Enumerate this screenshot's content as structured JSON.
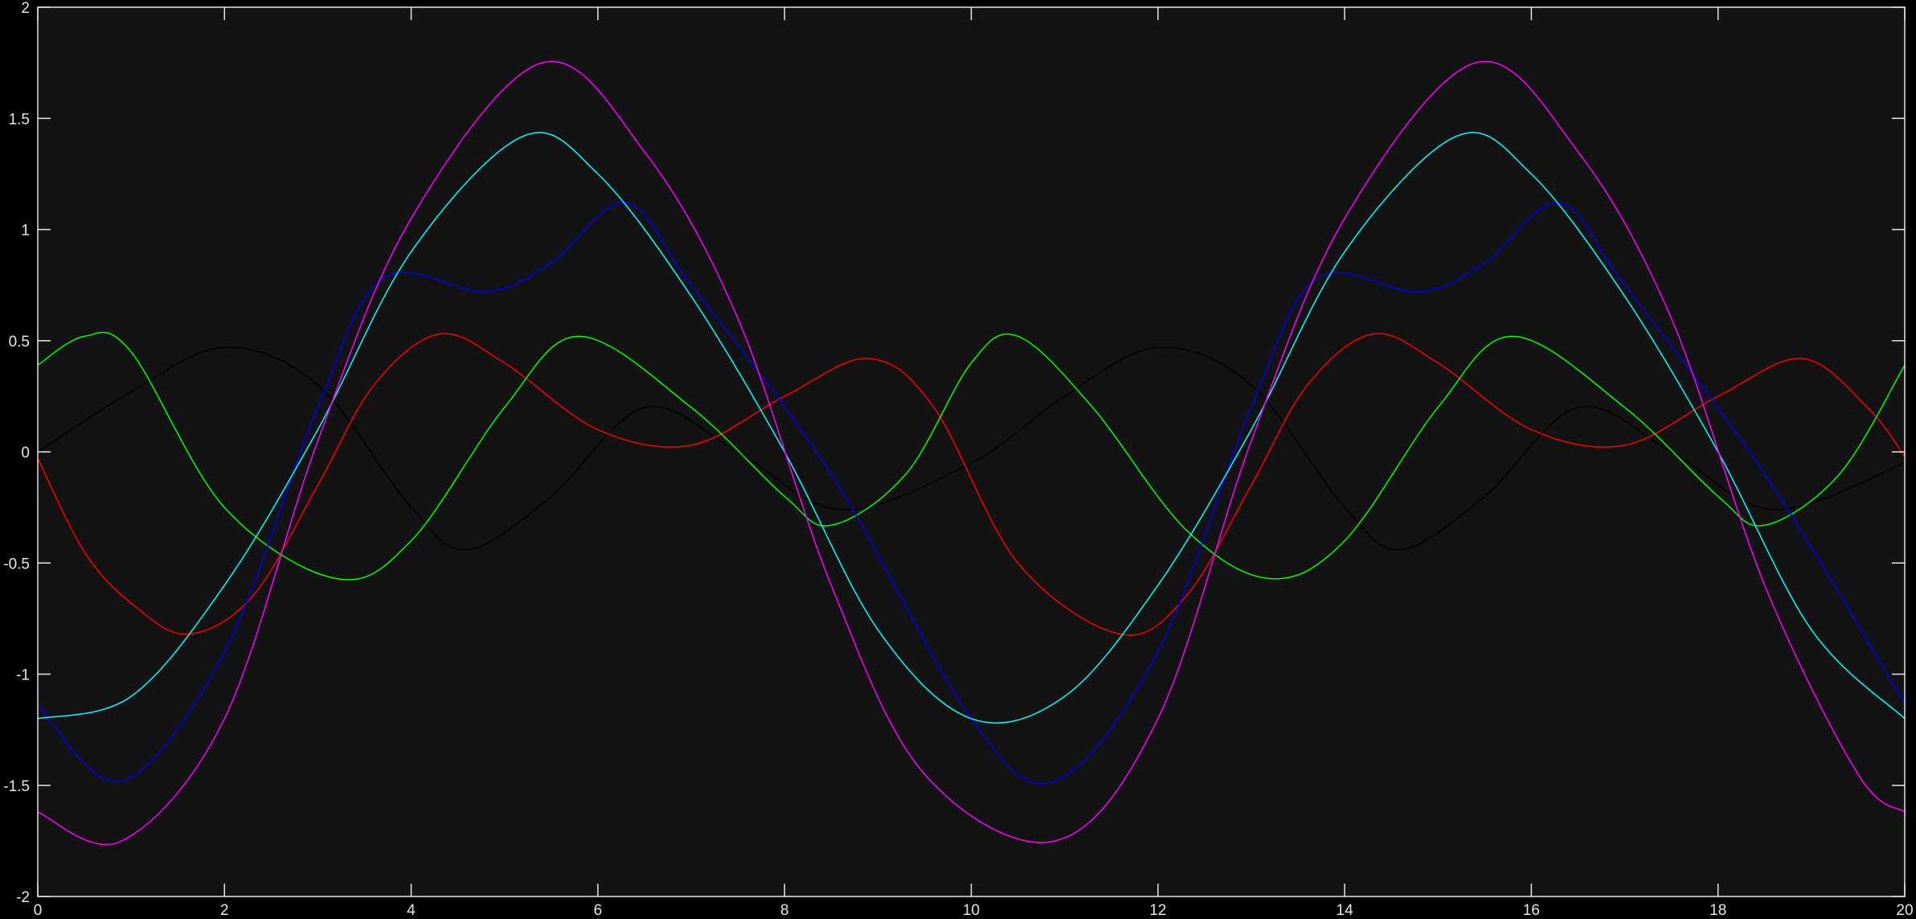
{
  "chart_data": {
    "type": "line",
    "title": "",
    "xlabel": "",
    "ylabel": "",
    "xlim": [
      0,
      20
    ],
    "ylim": [
      -2,
      2
    ],
    "x_ticks": [
      "0",
      "2",
      "4",
      "6",
      "8",
      "10",
      "12",
      "14",
      "16",
      "18",
      "20"
    ],
    "y_ticks": [
      "-2",
      "-1.5",
      "-1",
      "-0.5",
      "0",
      "0.5",
      "1",
      "1.5",
      "2"
    ],
    "grid": false,
    "colors": {
      "figure_background": "#000000",
      "axes_background": "#131313",
      "axes_edge": "#e6e6e6",
      "tick_label": "#e6e6e6"
    },
    "series": [
      {
        "color": "#000000",
        "x": [
          0,
          1,
          2,
          3,
          4,
          4.6,
          5.5,
          6.5,
          7.5,
          8.6,
          10,
          11,
          12,
          13,
          14,
          14.6,
          15.5,
          16.5,
          17.5,
          18.6,
          20
        ],
        "y": [
          0,
          0.27,
          0.47,
          0.3,
          -0.25,
          -0.44,
          -0.2,
          0.2,
          0.0,
          -0.26,
          -0.05,
          0.25,
          0.47,
          0.3,
          -0.25,
          -0.44,
          -0.2,
          0.2,
          0.0,
          -0.26,
          -0.05
        ]
      },
      {
        "color": "#ff0000",
        "x": [
          0,
          0.5,
          1,
          1.6,
          2.3,
          3,
          3.6,
          4.3,
          5,
          6,
          7,
          8,
          8.9,
          9.6,
          10.5,
          11.6,
          12.3,
          13,
          13.6,
          14.3,
          15,
          16,
          17,
          18,
          18.9,
          19.6,
          20
        ],
        "y": [
          -0.03,
          -0.45,
          -0.68,
          -0.82,
          -0.65,
          -0.15,
          0.3,
          0.53,
          0.4,
          0.1,
          0.03,
          0.25,
          0.42,
          0.2,
          -0.5,
          -0.82,
          -0.65,
          -0.15,
          0.3,
          0.53,
          0.4,
          0.1,
          0.03,
          0.25,
          0.42,
          0.2,
          -0.02
        ]
      },
      {
        "color": "#00ff00",
        "x": [
          0,
          0.5,
          1,
          2,
          3.2,
          4,
          5,
          5.8,
          7,
          8,
          8.5,
          9.3,
          10,
          10.5,
          11.3,
          12.3,
          13.2,
          14,
          15,
          15.8,
          17,
          18,
          18.5,
          19.3,
          20
        ],
        "y": [
          0.39,
          0.52,
          0.45,
          -0.25,
          -0.57,
          -0.4,
          0.2,
          0.52,
          0.2,
          -0.2,
          -0.33,
          -0.1,
          0.4,
          0.52,
          0.2,
          -0.35,
          -0.57,
          -0.4,
          0.2,
          0.52,
          0.2,
          -0.2,
          -0.33,
          -0.1,
          0.39
        ]
      },
      {
        "color": "#0000ff",
        "x": [
          0,
          0.9,
          2,
          3,
          3.7,
          4.8,
          5.5,
          6.3,
          7,
          8.5,
          10,
          10.9,
          12,
          13,
          13.7,
          14.8,
          15.5,
          16.3,
          17,
          18.5,
          20
        ],
        "y": [
          -1.14,
          -1.48,
          -0.9,
          0.2,
          0.78,
          0.72,
          0.85,
          1.12,
          0.75,
          -0.1,
          -1.2,
          -1.48,
          -0.9,
          0.2,
          0.78,
          0.72,
          0.85,
          1.12,
          0.75,
          -0.1,
          -1.13
        ]
      },
      {
        "color": "#00ffff",
        "x": [
          0,
          1,
          2,
          3,
          4,
          5.2,
          6,
          7,
          8,
          9,
          10,
          11,
          12,
          13,
          14,
          15.2,
          16,
          17,
          18,
          19,
          20
        ],
        "y": [
          -1.2,
          -1.1,
          -0.6,
          0.1,
          0.9,
          1.42,
          1.25,
          0.7,
          0.0,
          -0.8,
          -1.2,
          -1.1,
          -0.6,
          0.1,
          0.9,
          1.42,
          1.25,
          0.7,
          0.0,
          -0.8,
          -1.2
        ]
      },
      {
        "color": "#ff00ff",
        "x": [
          0,
          0.9,
          2,
          3,
          4,
          5.4,
          6.5,
          7.5,
          8.5,
          9.5,
          10.9,
          12,
          13,
          14,
          15.4,
          16.5,
          17.5,
          18.5,
          19.5,
          20
        ],
        "y": [
          -1.62,
          -1.75,
          -1.2,
          0.05,
          1.05,
          1.75,
          1.35,
          0.6,
          -0.6,
          -1.45,
          -1.75,
          -1.2,
          0.05,
          1.05,
          1.75,
          1.35,
          0.6,
          -0.6,
          -1.45,
          -1.62
        ]
      }
    ]
  }
}
